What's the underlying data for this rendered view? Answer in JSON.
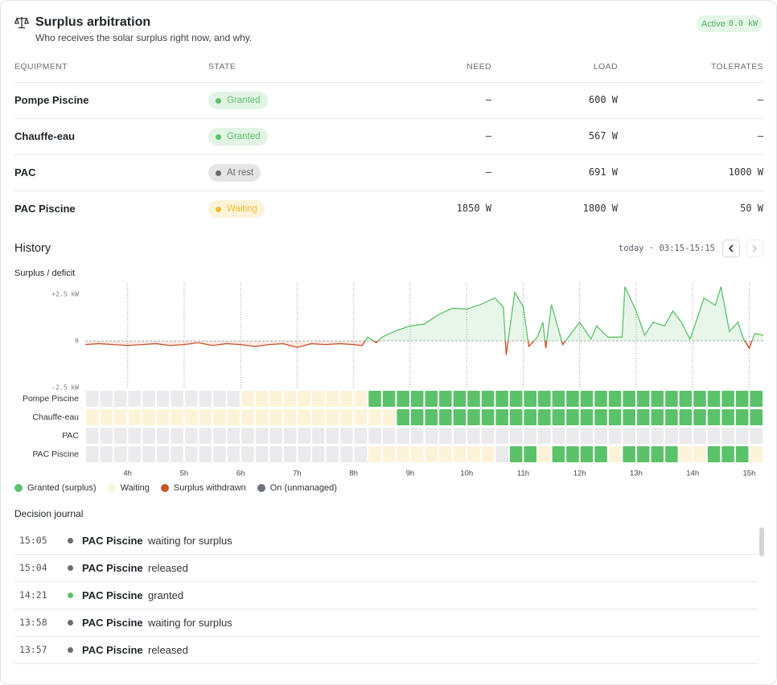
{
  "header": {
    "title": "Surplus arbitration",
    "subtitle": "Who receives the solar surplus right now, and why.",
    "status_label": "Active",
    "status_value": "0.0 kW"
  },
  "table": {
    "columns": [
      "EQUIPMENT",
      "STATE",
      "NEED",
      "LOAD",
      "TOLERATES"
    ],
    "rows": [
      {
        "equipment": "Pompe Piscine",
        "state": "Granted",
        "state_color": "#5cc26a",
        "need": "—",
        "load": "600 W",
        "tolerates": "—"
      },
      {
        "equipment": "Chauffe-eau",
        "state": "Granted",
        "state_color": "#5cc26a",
        "need": "—",
        "load": "567 W",
        "tolerates": "—"
      },
      {
        "equipment": "PAC",
        "state": "At rest",
        "state_color": "#6b6b70",
        "need": "—",
        "load": "691 W",
        "tolerates": "1000 W"
      },
      {
        "equipment": "PAC Piscine",
        "state": "Waiting",
        "state_color": "#f0bd2e",
        "need": "1850 W",
        "load": "1800 W",
        "tolerates": "50 W"
      }
    ]
  },
  "history": {
    "title": "History",
    "range": "today · 03:15-15:15"
  },
  "chart_data": [
    {
      "type": "line",
      "title": "Surplus / deficit",
      "color": "#5cc26a",
      "negative_color": "#c9522c",
      "x": [
        3.25,
        3.5,
        3.75,
        4,
        4.25,
        4.5,
        4.75,
        5,
        5.25,
        5.5,
        5.75,
        6,
        6.25,
        6.5,
        6.75,
        7,
        7.25,
        7.5,
        7.75,
        8,
        8.15,
        8.25,
        8.4,
        8.5,
        8.75,
        9,
        9.25,
        9.5,
        9.75,
        10,
        10.25,
        10.5,
        10.65,
        10.7,
        10.85,
        11,
        11.1,
        11.25,
        11.35,
        11.4,
        11.5,
        11.7,
        12,
        12.2,
        12.3,
        12.5,
        12.75,
        12.8,
        13,
        13.15,
        13.3,
        13.5,
        13.65,
        13.8,
        13.95,
        14,
        14.2,
        14.4,
        14.5,
        14.65,
        14.8,
        14.9,
        15,
        15.1,
        15.25
      ],
      "values": [
        -0.2,
        -0.15,
        -0.2,
        -0.25,
        -0.2,
        -0.15,
        -0.25,
        -0.2,
        -0.1,
        -0.25,
        -0.15,
        -0.2,
        -0.3,
        -0.2,
        -0.15,
        -0.35,
        -0.15,
        -0.2,
        -0.15,
        -0.2,
        -0.25,
        0.2,
        -0.1,
        0.2,
        0.55,
        0.8,
        0.9,
        1.4,
        1.75,
        1.7,
        1.95,
        2.3,
        1.8,
        -0.75,
        2.6,
        1.85,
        -0.3,
        0.2,
        1.0,
        -0.4,
        1.95,
        -0.2,
        1.0,
        0.1,
        0.8,
        0.2,
        0.2,
        2.9,
        1.6,
        0.3,
        1.0,
        0.8,
        1.6,
        1.0,
        0.1,
        0.5,
        2.3,
        1.9,
        2.9,
        0.5,
        1.0,
        0.1,
        -0.4,
        0.4,
        0.3
      ],
      "xlim": [
        3.25,
        15.25
      ],
      "xticks": [
        {
          "value": 4,
          "label": "4h"
        },
        {
          "value": 5,
          "label": "5h"
        },
        {
          "value": 6,
          "label": "6h"
        },
        {
          "value": 7,
          "label": "7h"
        },
        {
          "value": 8,
          "label": "8h"
        },
        {
          "value": 9,
          "label": "9h"
        },
        {
          "value": 10,
          "label": "10h"
        },
        {
          "value": 11,
          "label": "11h"
        },
        {
          "value": 12,
          "label": "12h"
        },
        {
          "value": 13,
          "label": "13h"
        },
        {
          "value": 14,
          "label": "14h"
        },
        {
          "value": 15,
          "label": "15h"
        }
      ],
      "ylim": [
        -2.5,
        3.1
      ],
      "yticks": [
        {
          "value": 2.5,
          "label": "+2.5 kW"
        },
        0,
        {
          "value": -2.5,
          "label": "-2.5 kW"
        }
      ]
    },
    {
      "type": "timeline",
      "xlim": [
        3.25,
        15.25
      ],
      "idle_color": "#ebebed",
      "legend": [
        {
          "name": "Granted (surplus)",
          "color": "#5cc26a"
        },
        {
          "name": "Waiting",
          "color": "#fcf3d9"
        },
        {
          "name": "Surplus withdrawn",
          "color": "#c9522c"
        },
        {
          "name": "On (unmanaged)",
          "color": "#6b7280"
        }
      ],
      "series": [
        {
          "name": "Pompe Piscine",
          "values": [
            null,
            null,
            null,
            null,
            null,
            null,
            null,
            null,
            null,
            null,
            null,
            1,
            1,
            1,
            1,
            1,
            1,
            1,
            1,
            1,
            0,
            0,
            0,
            0,
            0,
            0,
            0,
            0,
            0,
            0,
            0,
            0,
            0,
            0,
            0,
            0,
            0,
            0,
            0,
            0,
            0,
            0,
            0,
            0,
            0,
            0,
            0,
            0
          ]
        },
        {
          "name": "Chauffe-eau",
          "values": [
            1,
            1,
            1,
            1,
            1,
            1,
            1,
            1,
            1,
            1,
            1,
            1,
            1,
            1,
            1,
            1,
            1,
            1,
            1,
            1,
            1,
            1,
            0,
            0,
            0,
            0,
            0,
            0,
            0,
            0,
            0,
            0,
            0,
            0,
            0,
            0,
            0,
            0,
            0,
            0,
            0,
            0,
            0,
            0,
            0,
            0,
            0,
            0
          ]
        },
        {
          "name": "PAC",
          "values": [
            null,
            null,
            null,
            null,
            null,
            null,
            null,
            null,
            null,
            null,
            null,
            null,
            null,
            null,
            null,
            null,
            null,
            null,
            null,
            null,
            null,
            null,
            null,
            null,
            null,
            null,
            null,
            null,
            null,
            null,
            null,
            null,
            null,
            null,
            null,
            null,
            null,
            null,
            null,
            null,
            null,
            null,
            null,
            null,
            null,
            null,
            null,
            null
          ]
        },
        {
          "name": "PAC Piscine",
          "values": [
            null,
            null,
            null,
            null,
            null,
            null,
            null,
            null,
            null,
            null,
            null,
            null,
            null,
            null,
            null,
            null,
            null,
            null,
            null,
            null,
            1,
            1,
            1,
            1,
            1,
            1,
            1,
            1,
            1,
            null,
            0,
            0,
            1,
            0,
            0,
            0,
            0,
            1,
            0,
            0,
            0,
            0,
            1,
            1,
            0,
            0,
            0,
            1
          ]
        }
      ]
    }
  ],
  "journal": {
    "title": "Decision journal",
    "entries": [
      {
        "time": "15:05",
        "device": "PAC Piscine",
        "action": "waiting for surplus",
        "color": "#6b6b70"
      },
      {
        "time": "15:04",
        "device": "PAC Piscine",
        "action": "released",
        "color": "#6b6b70"
      },
      {
        "time": "14:21",
        "device": "PAC Piscine",
        "action": "granted",
        "color": "#5cc26a"
      },
      {
        "time": "13:58",
        "device": "PAC Piscine",
        "action": "waiting for surplus",
        "color": "#6b6b70"
      },
      {
        "time": "13:57",
        "device": "PAC Piscine",
        "action": "released",
        "color": "#6b6b70"
      }
    ]
  }
}
